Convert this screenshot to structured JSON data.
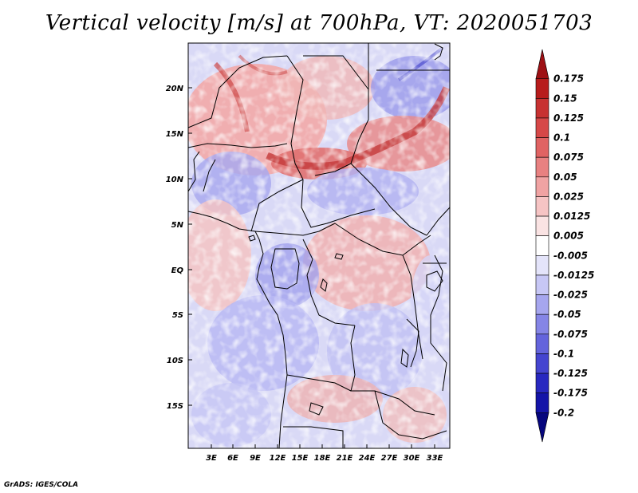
{
  "title": "Vertical velocity [m/s] at 700hPa, VT: 2020051703",
  "footer": "GrADS: IGES/COLA",
  "lat_ticks": [
    "20N",
    "15N",
    "10N",
    "5N",
    "EQ",
    "5S",
    "10S",
    "15S"
  ],
  "lon_ticks": [
    "3E",
    "6E",
    "9E",
    "12E",
    "15E",
    "18E",
    "21E",
    "24E",
    "27E",
    "30E",
    "33E"
  ],
  "colorbar": {
    "labels": [
      "0.175",
      "0.15",
      "0.125",
      "0.1",
      "0.075",
      "0.05",
      "0.025",
      "0.0125",
      "0.005",
      "-0.005",
      "-0.0125",
      "-0.025",
      "-0.05",
      "-0.075",
      "-0.1",
      "-0.125",
      "-0.175",
      "-0.2"
    ],
    "colors": [
      "#9e1014",
      "#b71c1c",
      "#c73232",
      "#d64848",
      "#e06363",
      "#e88181",
      "#f0a3a3",
      "#f6c4c4",
      "#fae3e3",
      "#ffffff",
      "#e4e4fa",
      "#c7c7f5",
      "#a6a6ee",
      "#8585e6",
      "#6464dc",
      "#4545d0",
      "#2828c0",
      "#1414a8",
      "#06067e"
    ]
  }
}
